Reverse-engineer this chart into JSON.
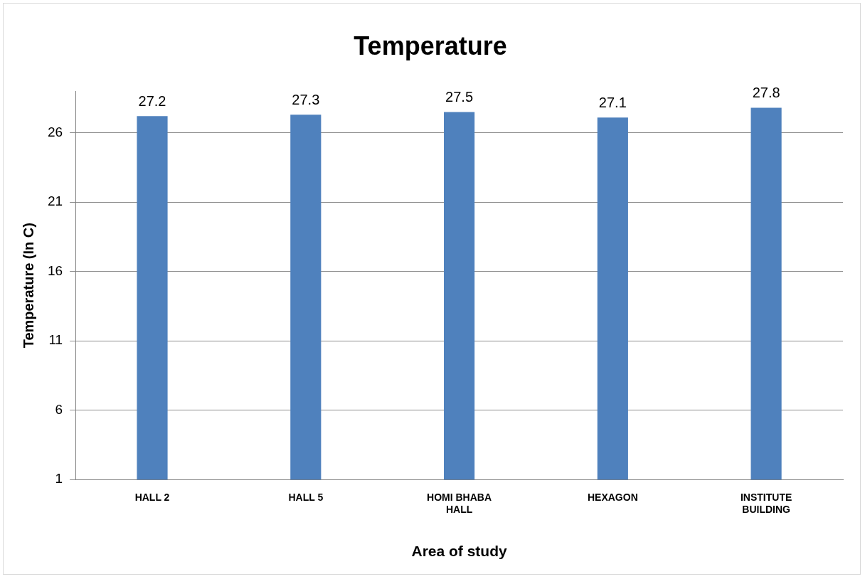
{
  "chart_data": {
    "type": "bar",
    "title": "Temperature",
    "xlabel": "Area of study",
    "ylabel": "Temperature (In C)",
    "categories": [
      "HALL 2",
      "HALL 5",
      "HOMI BHABA HALL",
      "HEXAGON",
      "INSTITUTE BUILDING"
    ],
    "values": [
      27.2,
      27.3,
      27.5,
      27.1,
      27.8
    ],
    "color": "#4f81bd",
    "ylim": [
      1,
      29
    ],
    "yticks": [
      1,
      6,
      11,
      16,
      21,
      26
    ],
    "grid": "y",
    "data_labels": true,
    "legend": false
  }
}
